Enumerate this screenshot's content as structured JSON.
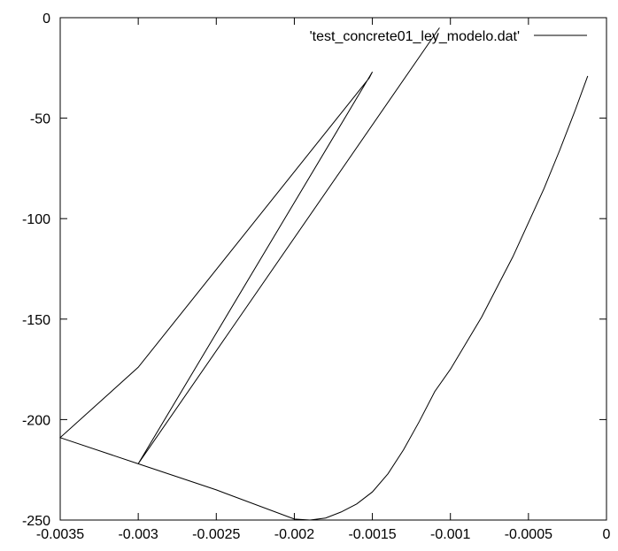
{
  "chart_data": {
    "type": "line",
    "title": "",
    "xlabel": "",
    "ylabel": "",
    "xlim": [
      -0.0035,
      0
    ],
    "ylim": [
      -250,
      0
    ],
    "grid": false,
    "legend_position": "top-right",
    "x_ticks": [
      -0.0035,
      -0.003,
      -0.0025,
      -0.002,
      -0.0015,
      -0.001,
      -0.0005,
      0
    ],
    "x_tick_labels": [
      "-0.0035",
      "-0.003",
      "-0.0025",
      "-0.002",
      "-0.0015",
      "-0.001",
      "-0.0005",
      "0"
    ],
    "y_ticks": [
      0,
      -50,
      -100,
      -150,
      -200,
      -250
    ],
    "y_tick_labels": [
      "0",
      "-50",
      "-100",
      "-150",
      "-200",
      "-250"
    ],
    "series": [
      {
        "name": "'test_concrete01_ley_modelo.dat'",
        "color": "#000000",
        "x": [
          -0.00012,
          -0.0002,
          -0.0003,
          -0.0004,
          -0.0005,
          -0.0006,
          -0.0007,
          -0.0008,
          -0.0009,
          -0.001,
          -0.0011,
          -0.0012,
          -0.0013,
          -0.0014,
          -0.0015,
          -0.0016,
          -0.0017,
          -0.0018,
          -0.0019,
          -0.002,
          -0.0025,
          -0.003,
          -0.0035,
          -0.003,
          -0.00152,
          -0.0015,
          -0.003,
          -0.00107
        ],
        "y": [
          -29,
          -46,
          -66,
          -85,
          -102,
          -119,
          -134,
          -149,
          -162,
          -175,
          -186,
          -201,
          -215,
          -227,
          -236,
          -242,
          -246,
          -249,
          -250,
          -249.5,
          -235,
          -222,
          -209,
          -174,
          -30,
          -27,
          -222,
          -5
        ]
      }
    ]
  }
}
